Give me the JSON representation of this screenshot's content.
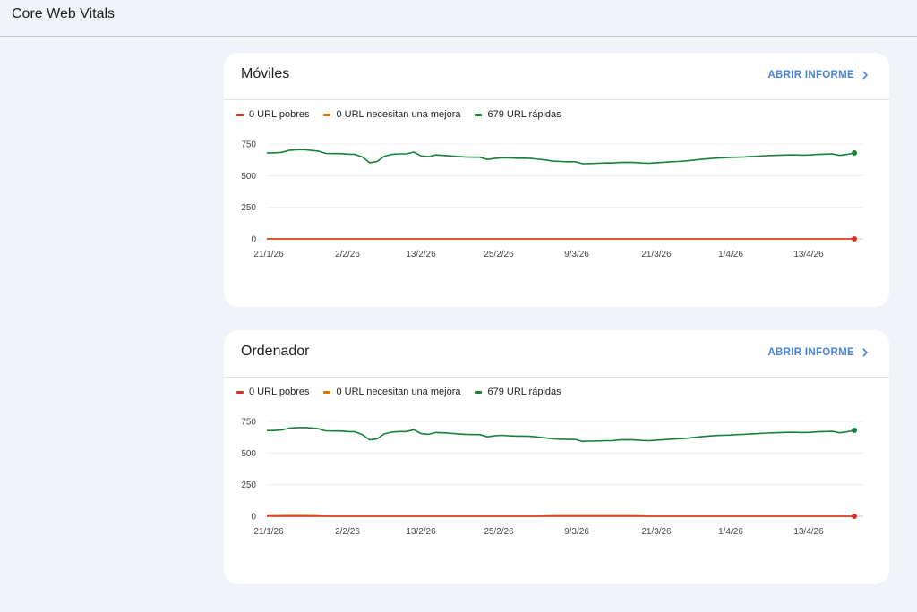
{
  "page": {
    "title": "Core Web Vitals"
  },
  "cards": [
    {
      "id": "mobile",
      "title": "Móviles",
      "open_report_label": "ABRIR INFORME",
      "legend": [
        {
          "label": "0 URL pobres",
          "color": "#d93025"
        },
        {
          "label": "0 URL necesitan una mejora",
          "color": "#e37400"
        },
        {
          "label": "679 URL rápidas",
          "color": "#188038"
        }
      ]
    },
    {
      "id": "desktop",
      "title": "Ordenador",
      "open_report_label": "ABRIR INFORME",
      "legend": [
        {
          "label": "0 URL pobres",
          "color": "#d93025"
        },
        {
          "label": "0 URL necesitan una mejora",
          "color": "#e37400"
        },
        {
          "label": "679 URL rápidas",
          "color": "#188038"
        }
      ]
    }
  ],
  "chart_data": [
    {
      "type": "line",
      "title": "Móviles",
      "ylim": [
        0,
        750
      ],
      "yticks": [
        0,
        250,
        500,
        750
      ],
      "xticks": [
        "21/1/26",
        "2/2/26",
        "13/2/26",
        "25/2/26",
        "9/3/26",
        "21/3/26",
        "1/4/26",
        "13/4/26"
      ],
      "grid": true,
      "series": [
        {
          "name": "URL rápidas",
          "color": "#188038",
          "values": [
            680,
            680,
            684,
            700,
            705,
            706,
            700,
            694,
            676,
            674,
            674,
            670,
            668,
            648,
            602,
            612,
            654,
            668,
            672,
            672,
            686,
            656,
            650,
            664,
            660,
            656,
            652,
            648,
            646,
            646,
            628,
            636,
            642,
            640,
            638,
            638,
            636,
            630,
            624,
            614,
            612,
            610,
            610,
            594,
            596,
            598,
            600,
            600,
            604,
            606,
            604,
            600,
            598,
            602,
            606,
            610,
            612,
            616,
            622,
            628,
            634,
            638,
            640,
            644,
            646,
            648,
            652,
            654,
            658,
            660,
            662,
            664,
            664,
            662,
            664,
            668,
            670,
            672,
            660,
            668,
            679
          ]
        },
        {
          "name": "URL necesitan una mejora",
          "color": "#e37400",
          "values": [
            0,
            0,
            0,
            0,
            0,
            0,
            0,
            0,
            0,
            0,
            0,
            0,
            0,
            0,
            0,
            0,
            0,
            0,
            0,
            0,
            0,
            0,
            0,
            0,
            0,
            0,
            0,
            0,
            0,
            0,
            0,
            0,
            0,
            0,
            0,
            0,
            0,
            0,
            0,
            0,
            0,
            0,
            0,
            0,
            0,
            0,
            0,
            0,
            0,
            0,
            0,
            0,
            0,
            0,
            0,
            0,
            0,
            0,
            0,
            0,
            0,
            0,
            0,
            0,
            0,
            0,
            0,
            0,
            0,
            0,
            0,
            0,
            0,
            0,
            0,
            0,
            0,
            0,
            0,
            0,
            0
          ]
        },
        {
          "name": "URL pobres",
          "color": "#d93025",
          "values": [
            0,
            0,
            0,
            0,
            0,
            0,
            0,
            0,
            0,
            0,
            0,
            0,
            0,
            0,
            0,
            0,
            0,
            0,
            0,
            0,
            0,
            0,
            0,
            0,
            0,
            0,
            0,
            0,
            0,
            0,
            0,
            0,
            0,
            0,
            0,
            0,
            0,
            0,
            0,
            0,
            0,
            0,
            0,
            0,
            0,
            0,
            0,
            0,
            0,
            0,
            0,
            0,
            0,
            0,
            0,
            0,
            0,
            0,
            0,
            0,
            0,
            0,
            0,
            0,
            0,
            0,
            0,
            0,
            0,
            0,
            0,
            0,
            0,
            0,
            0,
            0,
            0,
            0,
            0,
            0,
            0
          ]
        }
      ]
    },
    {
      "type": "line",
      "title": "Ordenador",
      "ylim": [
        0,
        750
      ],
      "yticks": [
        0,
        250,
        500,
        750
      ],
      "xticks": [
        "21/1/26",
        "2/2/26",
        "13/2/26",
        "25/2/26",
        "9/3/26",
        "21/3/26",
        "1/4/26",
        "13/4/26"
      ],
      "grid": true,
      "series": [
        {
          "name": "URL rápidas",
          "color": "#188038",
          "values": [
            678,
            678,
            682,
            696,
            700,
            702,
            698,
            692,
            676,
            674,
            674,
            670,
            668,
            646,
            604,
            612,
            652,
            666,
            670,
            670,
            684,
            654,
            648,
            662,
            660,
            656,
            652,
            648,
            646,
            646,
            628,
            636,
            640,
            636,
            634,
            634,
            632,
            626,
            620,
            612,
            610,
            608,
            608,
            592,
            594,
            596,
            598,
            598,
            604,
            606,
            604,
            600,
            598,
            602,
            606,
            610,
            612,
            616,
            622,
            628,
            634,
            638,
            640,
            642,
            646,
            648,
            652,
            654,
            658,
            660,
            662,
            664,
            664,
            662,
            664,
            668,
            670,
            672,
            660,
            668,
            679
          ]
        },
        {
          "name": "URL necesitan una mejora",
          "color": "#e37400",
          "values": [
            4,
            4,
            5,
            6,
            6,
            6,
            5,
            4,
            0,
            0,
            0,
            0,
            0,
            0,
            0,
            0,
            0,
            0,
            0,
            0,
            0,
            0,
            0,
            0,
            0,
            0,
            0,
            0,
            0,
            0,
            0,
            0,
            0,
            0,
            0,
            0,
            0,
            0,
            3,
            4,
            4,
            4,
            4,
            4,
            4,
            4,
            4,
            4,
            4,
            4,
            4,
            3,
            0,
            0,
            0,
            0,
            0,
            0,
            0,
            0,
            0,
            0,
            0,
            0,
            0,
            0,
            0,
            0,
            0,
            0,
            0,
            0,
            0,
            0,
            0,
            0,
            0,
            0,
            0,
            0,
            0
          ]
        },
        {
          "name": "URL pobres",
          "color": "#d93025",
          "values": [
            0,
            0,
            0,
            0,
            0,
            0,
            0,
            0,
            0,
            0,
            0,
            0,
            0,
            0,
            0,
            0,
            0,
            0,
            0,
            0,
            0,
            0,
            0,
            0,
            0,
            0,
            0,
            0,
            0,
            0,
            0,
            0,
            0,
            0,
            0,
            0,
            0,
            0,
            0,
            0,
            0,
            0,
            0,
            0,
            0,
            0,
            0,
            0,
            0,
            0,
            0,
            0,
            0,
            0,
            0,
            0,
            0,
            0,
            0,
            0,
            0,
            0,
            0,
            0,
            0,
            0,
            0,
            0,
            0,
            0,
            0,
            0,
            0,
            0,
            0,
            0,
            0,
            0,
            0,
            0,
            0
          ]
        }
      ]
    }
  ]
}
